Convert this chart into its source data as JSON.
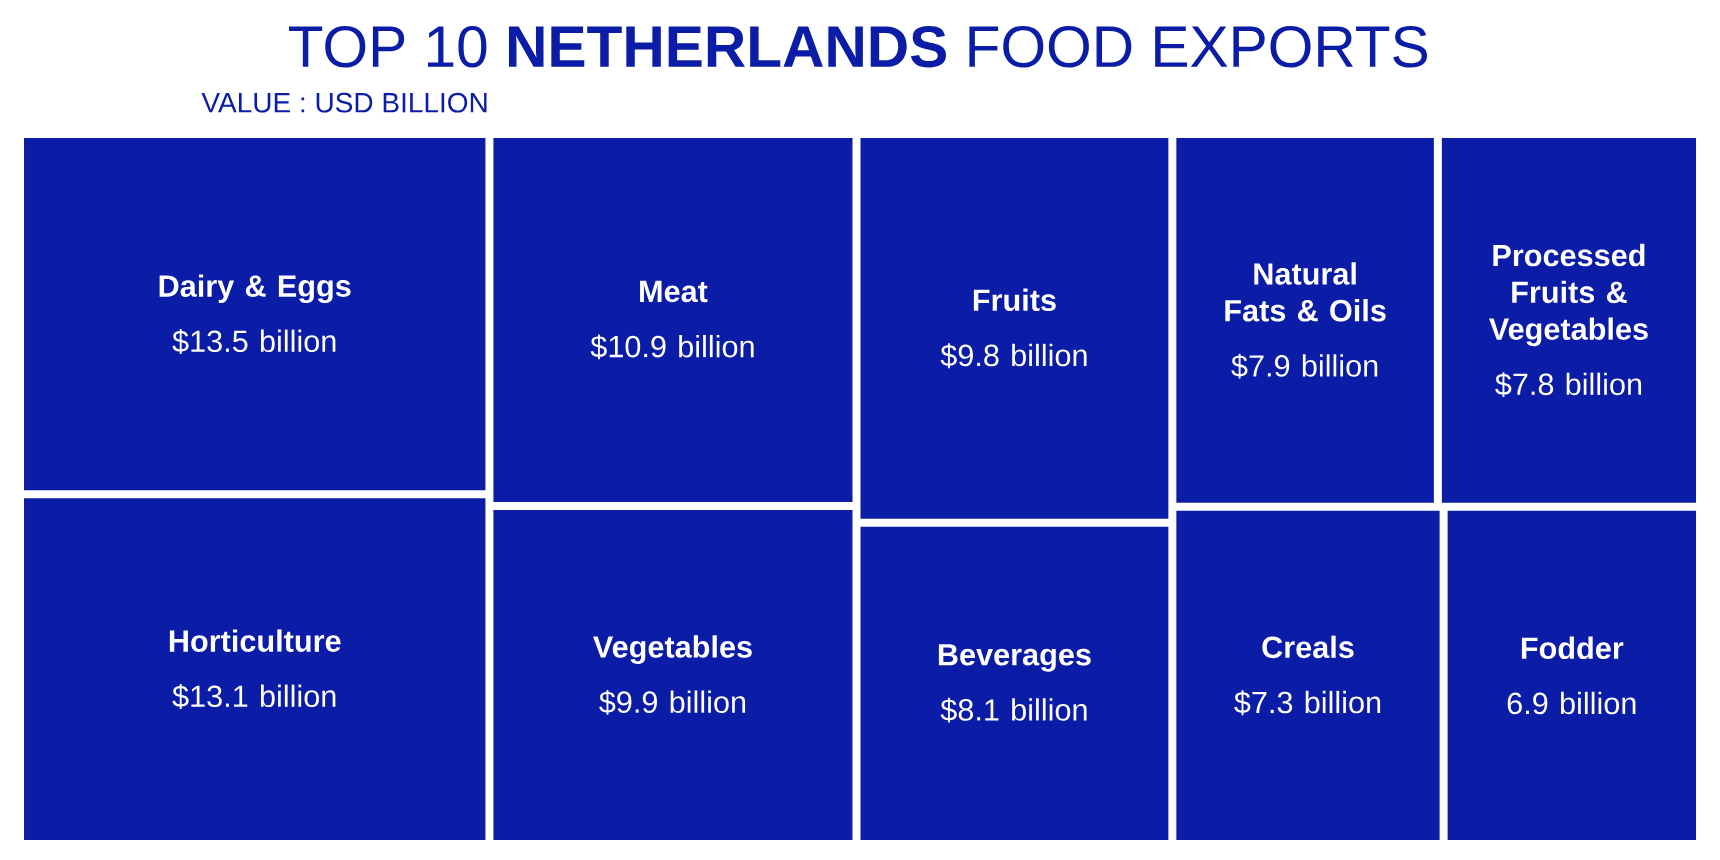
{
  "chart_data": {
    "type": "other",
    "title": "TOP 10 **NETHERLANDS** FOOD EXPORTS",
    "subtitle": "VALUE : USD BILLION",
    "categories": [
      "Dairy & Eggs",
      "Horticulture",
      "Meat",
      "Vegetables",
      "Fruits",
      "Beverages",
      "Natural Fats & Oils",
      "Processed Fruits & Vegetables",
      "Creals",
      "Fodder"
    ],
    "values": [
      13.5,
      13.1,
      10.9,
      9.9,
      9.8,
      8.1,
      7.9,
      7.8,
      7.3,
      6.9
    ],
    "value_labels": [
      "$13.5 billion",
      "$13.1 billion",
      "$10.9 billion",
      "$9.9 billion",
      "$9.8 billion",
      "$8.1 billion",
      "$7.9 billion",
      "$7.8 billion",
      "$7.3 billion",
      "6.9 billion"
    ],
    "color": "#0b1ca6"
  }
}
